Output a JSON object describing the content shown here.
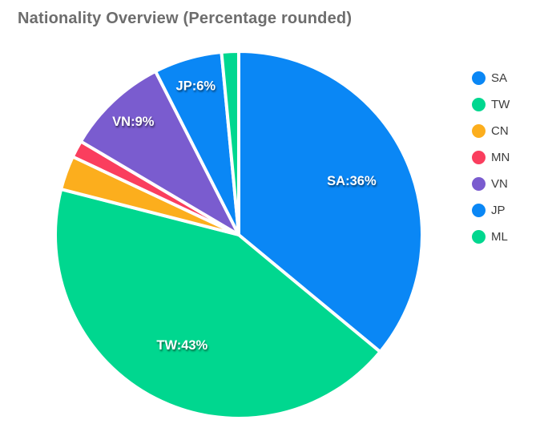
{
  "chart_data": {
    "type": "pie",
    "title": "Nationality Overview (Percentage rounded)",
    "unit": "percent",
    "start_angle": "top",
    "direction": "clockwise",
    "legend_position": "right",
    "slice_border_color": "#ffffff",
    "label_text_color": "#ffffff",
    "title_color": "#6d6d6d",
    "legend_text_color": "#3c3c3c",
    "slices": [
      {
        "name": "SA",
        "value": 36,
        "label": "SA:36%",
        "color": "#0a87f5"
      },
      {
        "name": "TW",
        "value": 43,
        "label": "TW:43%",
        "color": "#00d78f"
      },
      {
        "name": "CN",
        "value": 3,
        "label": "",
        "color": "#fcae1d"
      },
      {
        "name": "MN",
        "value": 1.5,
        "label": "",
        "color": "#fa3e5e"
      },
      {
        "name": "VN",
        "value": 9,
        "label": "VN:9%",
        "color": "#7a5ccf"
      },
      {
        "name": "JP",
        "value": 6,
        "label": "JP:6%",
        "color": "#0a87f5"
      },
      {
        "name": "ML",
        "value": 1.5,
        "label": "",
        "color": "#00d78f"
      }
    ]
  }
}
